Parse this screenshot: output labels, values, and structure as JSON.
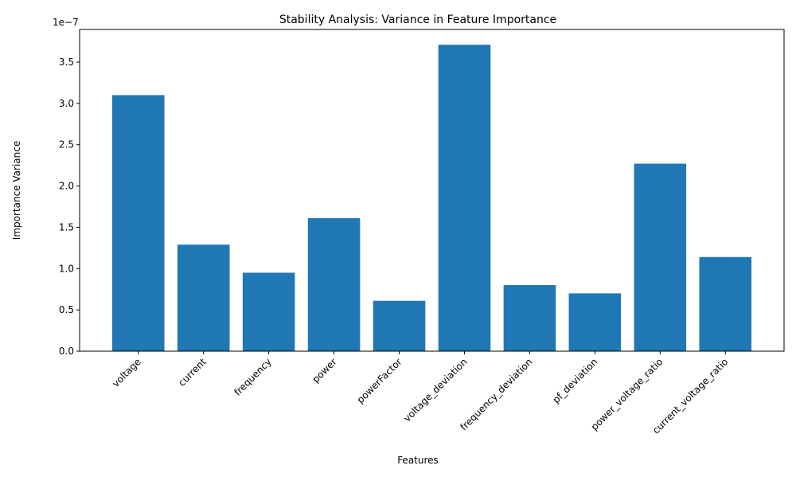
{
  "chart_data": {
    "type": "bar",
    "title": "Stability Analysis: Variance in Feature Importance",
    "xlabel": "Features",
    "ylabel": "Importance Variance",
    "scale_label": "1e−7",
    "scale": 1e-07,
    "categories": [
      "voltage",
      "current",
      "frequency",
      "power",
      "powerFactor",
      "voltage_deviation",
      "frequency_deviation",
      "pf_deviation",
      "power_voltage_ratio",
      "current_voltage_ratio"
    ],
    "values": [
      3.1e-07,
      1.29e-07,
      9.5e-08,
      1.61e-07,
      6.1e-08,
      3.71e-07,
      8e-08,
      7e-08,
      2.27e-07,
      1.14e-07
    ],
    "yticks": [
      0.0,
      0.5,
      1.0,
      1.5,
      2.0,
      2.5,
      3.0,
      3.5
    ],
    "ytick_labels": [
      "0.0",
      "0.5",
      "1.0",
      "1.5",
      "2.0",
      "2.5",
      "3.0",
      "3.5"
    ],
    "ylim": [
      0,
      3.895e-07
    ],
    "bar_color": "#1f77b4",
    "grid": false,
    "legend": "none"
  }
}
